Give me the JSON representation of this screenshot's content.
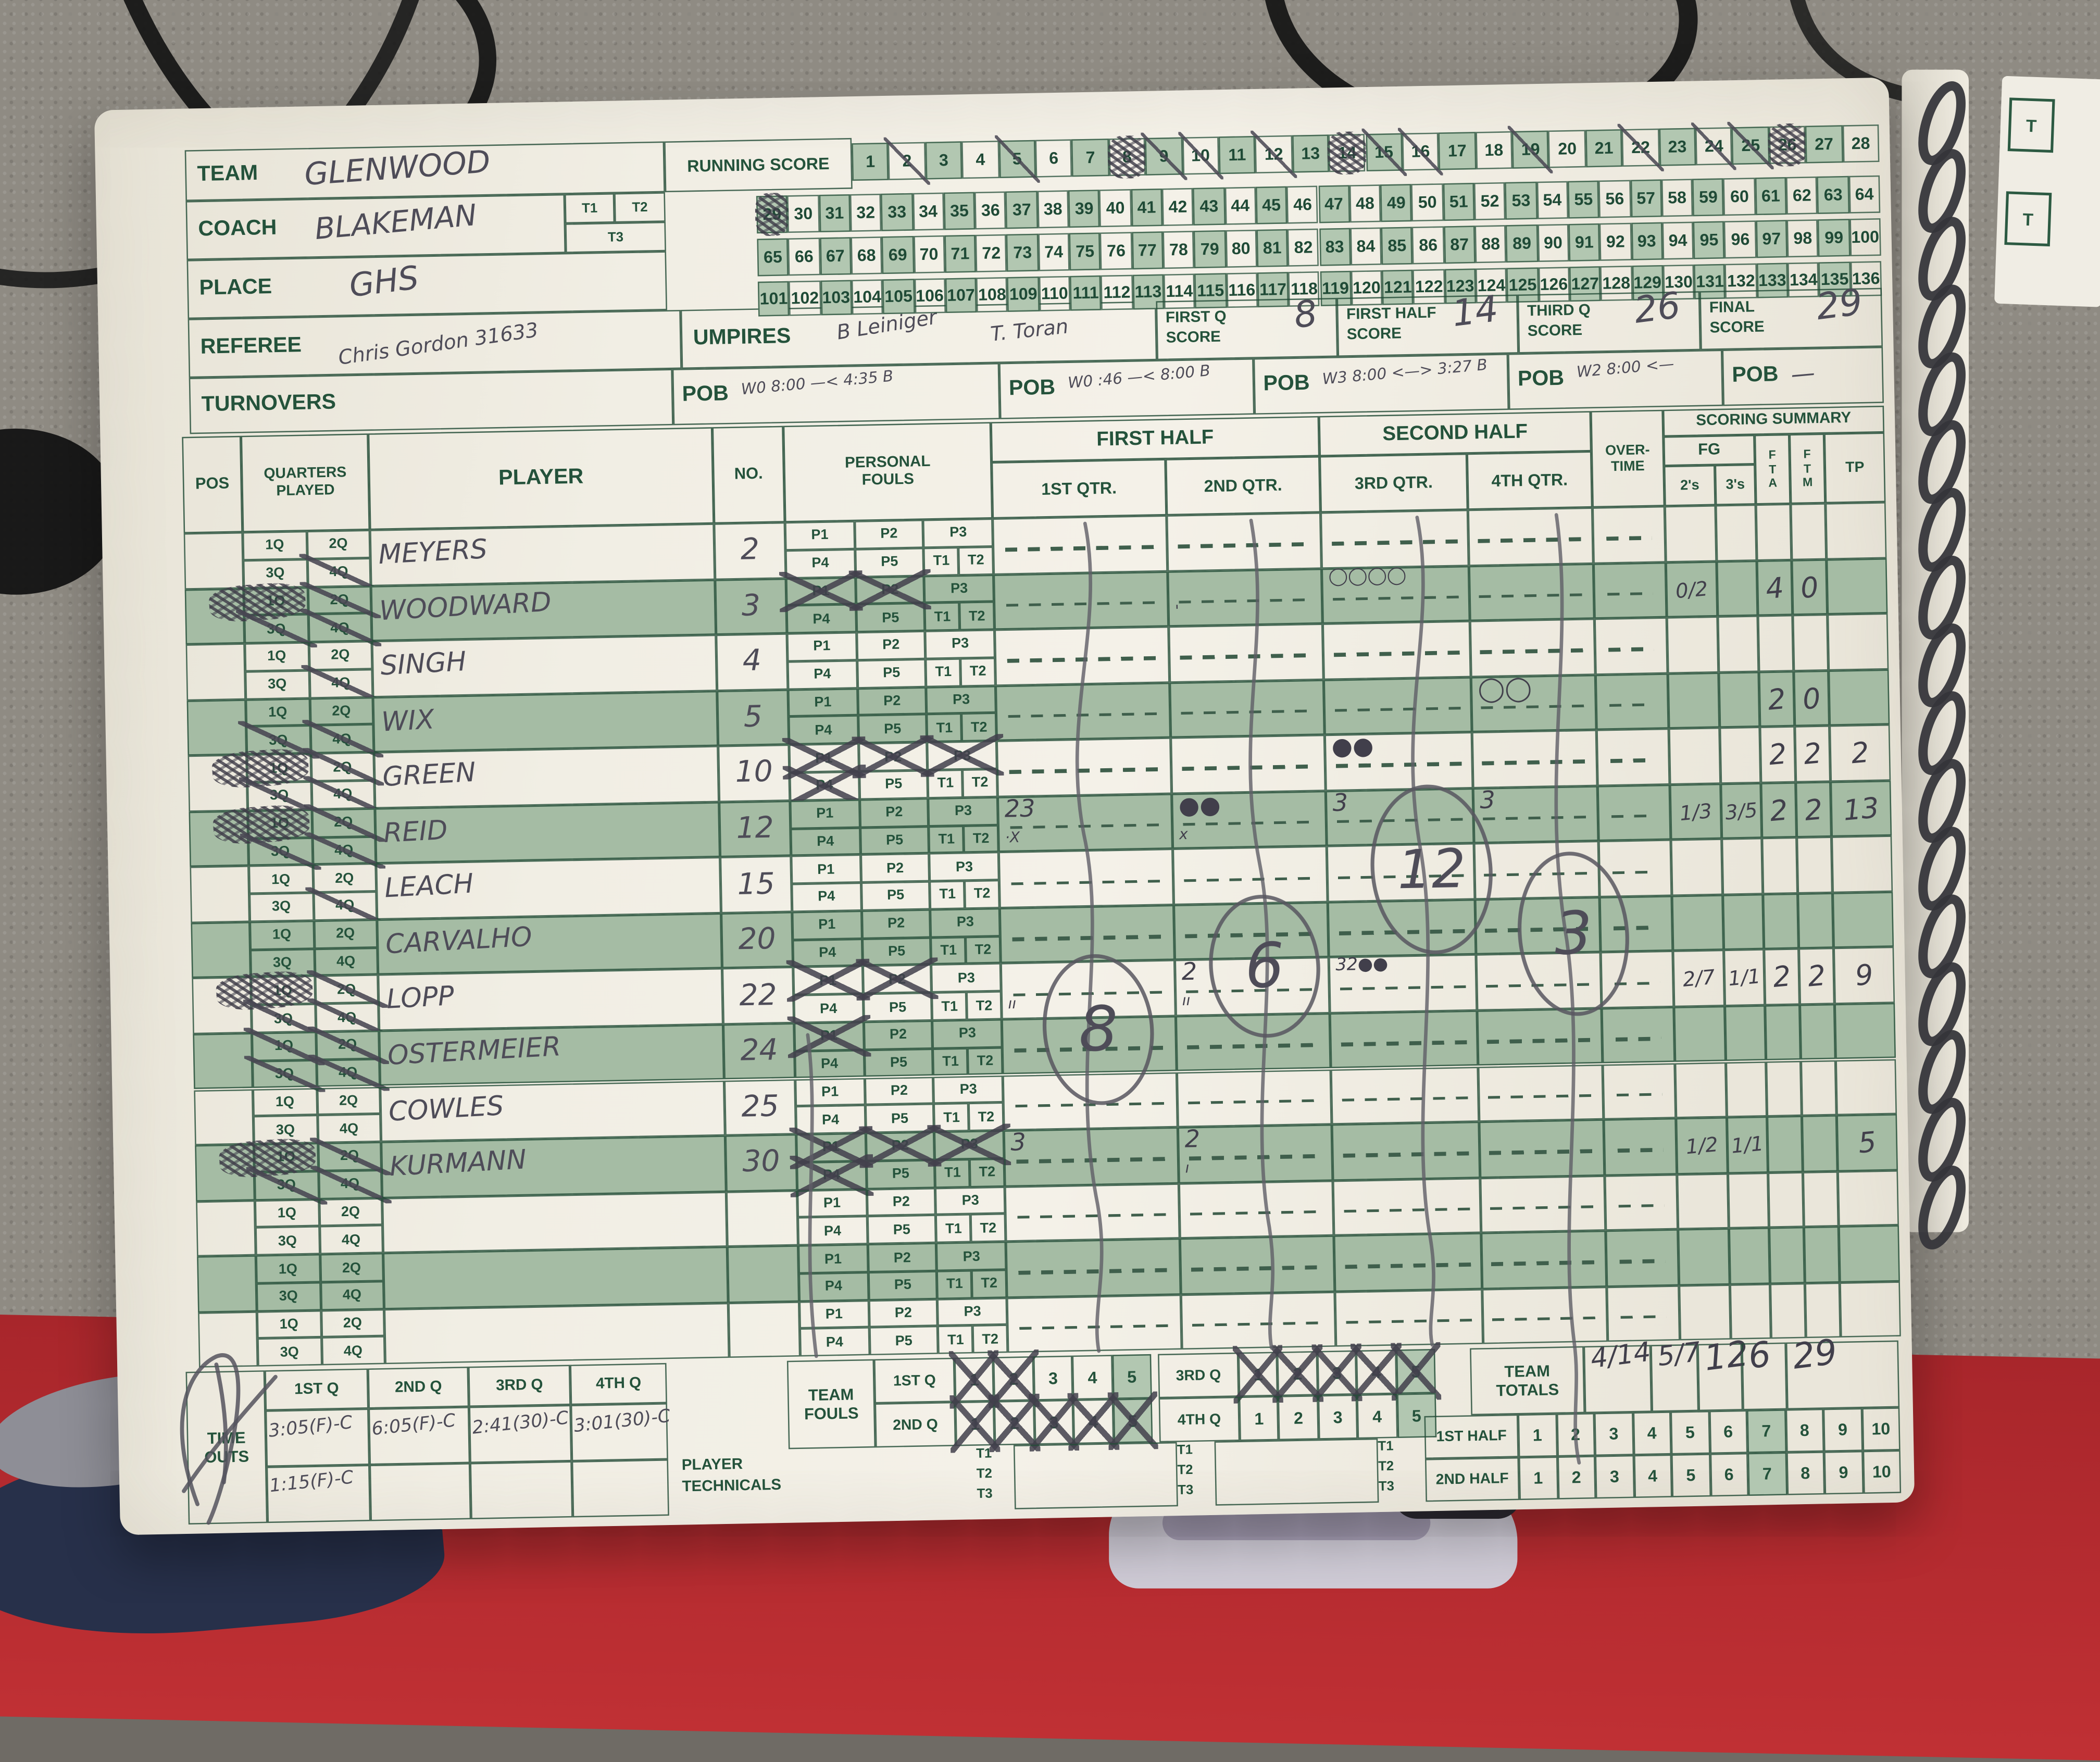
{
  "header": {
    "team_label": "TEAM",
    "team": "GLENWOOD",
    "coach_label": "COACH",
    "coach": "BLAKEMAN",
    "t1": "T1",
    "t2": "T2",
    "t3": "T3",
    "place_label": "PLACE",
    "place": "GHS",
    "referee_label": "REFEREE",
    "referee": "Chris Gordon 31633",
    "umpires_label": "UMPIRES",
    "umpire1": "B Leiniger",
    "umpire2": "T. Toran"
  },
  "running_score": {
    "title": "RUNNING SCORE",
    "row1_start": 1,
    "row1_count": 28,
    "rows_start": [
      29,
      65,
      101
    ],
    "rows_count": 36,
    "slashed": [
      2,
      5,
      9,
      10,
      12,
      15,
      16,
      19,
      22,
      24,
      25
    ],
    "scribbled": [
      8,
      14,
      26,
      29
    ]
  },
  "score_boxes": [
    {
      "label": "FIRST Q\nSCORE",
      "value": "8"
    },
    {
      "label": "FIRST HALF\nSCORE",
      "value": "14"
    },
    {
      "label": "THIRD Q\nSCORE",
      "value": "26"
    },
    {
      "label": "FINAL\nSCORE",
      "value": "29"
    }
  ],
  "turnovers": {
    "label": "TURNOVERS",
    "pob_label": "POB",
    "entries": [
      "W0 8:00 —< 4:35 B",
      "W0 :46 —< 8:00 B",
      "W3 8:00 <—> 3:27 B",
      "W2 8:00 <—",
      "—"
    ]
  },
  "table": {
    "pos": "POS",
    "quarters": "QUARTERS\nPLAYED",
    "player": "PLAYER",
    "no": "NO.",
    "fouls": "PERSONAL\nFOULS",
    "first_half": "FIRST HALF",
    "second_half": "SECOND HALF",
    "overtime": "OVER-\nTIME",
    "scoring_summary": "SCORING SUMMARY",
    "fg": "FG",
    "s2": "2's",
    "s3": "3's",
    "fta": "F\nT\nA",
    "ftm": "F\nT\nM",
    "tp": "TP",
    "q1": "1ST QTR.",
    "q2": "2ND QTR.",
    "q3": "3RD QTR.",
    "q4": "4TH QTR.",
    "q_cells": [
      "1Q",
      "2Q",
      "3Q",
      "4Q"
    ],
    "foul_cells": [
      "P1",
      "P2",
      "P3",
      "P4",
      "P5",
      "T1",
      "T2"
    ]
  },
  "players": [
    {
      "name": "MEYERS",
      "no": "2",
      "q_marks": {
        "q4": "slash"
      },
      "fouls": [],
      "scoring": {},
      "summary": {}
    },
    {
      "name": "WOODWARD",
      "no": "3",
      "q_marks": {
        "q1": "scribble",
        "q2": "slash",
        "q3": "slash",
        "q4": "slash"
      },
      "fouls": [
        "P1",
        "P2"
      ],
      "scoring": {
        "q2": "|'",
        "q3": "◯◯◯◯"
      },
      "summary": {
        "s2": "0/2",
        "fta": "4",
        "ftm": "0"
      }
    },
    {
      "name": "SINGH",
      "no": "4",
      "q_marks": {
        "q4": "slash"
      },
      "fouls": [],
      "scoring": {},
      "summary": {}
    },
    {
      "name": "WIX",
      "no": "5",
      "q_marks": {
        "q3": "slash",
        "q4": "slash"
      },
      "fouls": [],
      "scoring": {
        "q4": "◯◯"
      },
      "summary": {
        "fta": "2",
        "ftm": "0"
      }
    },
    {
      "name": "GREEN",
      "no": "10",
      "q_marks": {
        "q1": "scribble",
        "q2": "slash",
        "q3": "slash",
        "q4": "slash"
      },
      "fouls": [
        "P1",
        "P2",
        "P3",
        "P4"
      ],
      "scoring": {
        "q3": "●●"
      },
      "summary": {
        "fta": "2",
        "ftm": "2",
        "tp": "2"
      }
    },
    {
      "name": "REID",
      "no": "12",
      "q_marks": {
        "q1": "scribble",
        "q2": "slash",
        "q3": "slash",
        "q4": "slash"
      },
      "fouls": [],
      "scoring": {
        "q1": "23|·X",
        "q2": "●●|x",
        "q3": "3",
        "q4": "3"
      },
      "summary": {
        "s2": "1/3",
        "s3": "3/5",
        "fta": "2",
        "ftm": "2",
        "tp": "13"
      }
    },
    {
      "name": "LEACH",
      "no": "15",
      "q_marks": {
        "q4": "slash"
      },
      "fouls": [],
      "scoring": {},
      "summary": {}
    },
    {
      "name": "CARVALHO",
      "no": "20",
      "q_marks": {},
      "fouls": [],
      "scoring": {},
      "summary": {}
    },
    {
      "name": "LOPP",
      "no": "22",
      "q_marks": {
        "q1": "scribble",
        "q2": "slash",
        "q3": "slash",
        "q4": "slash"
      },
      "fouls": [
        "P1",
        "P2"
      ],
      "scoring": {
        "q1": "|ıı",
        "q2": "2|ıı",
        "q3": "32●●"
      },
      "summary": {
        "s2": "2/7",
        "s3": "1/1",
        "fta": "2",
        "ftm": "2",
        "tp": "9"
      }
    },
    {
      "name": "OSTERMEIER",
      "no": "24",
      "q_marks": {
        "q1": "slash",
        "q2": "slash",
        "q3": "slash",
        "q4": "slash"
      },
      "fouls": [
        "P1"
      ],
      "scoring": {},
      "summary": {}
    },
    {
      "name": "COWLES",
      "no": "25",
      "q_marks": {},
      "fouls": [],
      "scoring": {},
      "summary": {}
    },
    {
      "name": "KURMANN",
      "no": "30",
      "q_marks": {
        "q1": "scribble",
        "q2": "slash",
        "q3": "slash",
        "q4": "slash"
      },
      "fouls": [
        "P1",
        "P2",
        "P3",
        "P4"
      ],
      "scoring": {
        "q1": "3",
        "q2": "2|ı"
      },
      "summary": {
        "s2": "1/2",
        "s3": "1/1",
        "tp": "5"
      }
    },
    {
      "name": "",
      "no": "",
      "q_marks": {},
      "fouls": [],
      "scoring": {},
      "summary": {}
    },
    {
      "name": "",
      "no": "",
      "q_marks": {},
      "fouls": [],
      "scoring": {},
      "summary": {}
    },
    {
      "name": "",
      "no": "",
      "q_marks": {},
      "fouls": [],
      "scoring": {},
      "summary": {}
    }
  ],
  "quarter_totals": [
    {
      "quarter": "1ST",
      "value": "8"
    },
    {
      "quarter": "2ND",
      "value": "6"
    },
    {
      "quarter": "3RD",
      "value": "12"
    },
    {
      "quarter": "4TH",
      "value": "3"
    }
  ],
  "bottom": {
    "timeouts_label": "TIME\nOUTS",
    "timeout_cols": [
      "1ST Q",
      "2ND Q",
      "3RD Q",
      "4TH Q"
    ],
    "timeouts": [
      [
        "3:05(F)-C",
        "1:15(F)-C"
      ],
      [
        "6:05(F)-C"
      ],
      [
        "2:41(30)-C"
      ],
      [
        "3:01(30)-C"
      ]
    ],
    "team_fouls_label": "TEAM\nFOULS",
    "team_foul_numbers": [
      1,
      2,
      3,
      4,
      5
    ],
    "team_foul_rows": [
      {
        "label": "1ST Q",
        "crossed": [
          1,
          2
        ]
      },
      {
        "label": "2ND Q",
        "crossed": [
          1,
          2,
          3,
          4,
          5
        ]
      },
      {
        "label": "3RD Q",
        "crossed": [
          1,
          2,
          3,
          4,
          5
        ]
      },
      {
        "label": "4TH Q",
        "crossed": []
      }
    ],
    "technicals_label": "PLAYER\nTECHNICALS",
    "technical_ts": [
      "T1",
      "T2",
      "T3"
    ],
    "totals_label": "TEAM\nTOTALS",
    "totals": {
      "s2": "4/14",
      "s3": "5/7",
      "fta": "12",
      "ftm": "6",
      "tp": "29"
    },
    "half_numbers": [
      1,
      2,
      3,
      4,
      5,
      6,
      7,
      8,
      9,
      10
    ],
    "half_rows": [
      {
        "label": "1ST HALF",
        "highlight": 7
      },
      {
        "label": "2ND HALF",
        "highlight": 7
      }
    ]
  },
  "facing_page": {
    "cells": [
      "T",
      "T"
    ]
  },
  "colors": {
    "print_green": "#24523b",
    "stripe_green": "#a5bca4",
    "pencil": "#4e4c58",
    "floor_red": "#b0272c"
  }
}
